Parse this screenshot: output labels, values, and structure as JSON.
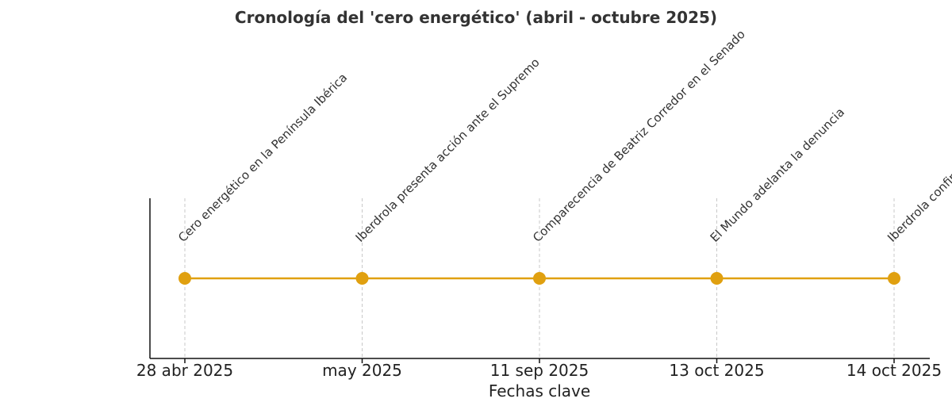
{
  "chart_data": {
    "type": "line",
    "title": "Cronología del 'cero energético' (abril - octubre 2025)",
    "xlabel": "Fechas clave",
    "ylabel": "",
    "categories": [
      "28 abr 2025",
      "may 2025",
      "11 sep 2025",
      "13 oct 2025",
      "14 oct 2025"
    ],
    "values": [
      1,
      1,
      1,
      1,
      1
    ],
    "events": [
      "Cero energético en la Península Ibérica",
      "Iberdrola presenta acción ante el Supremo",
      "Comparecencia de Beatriz Corredor en el Senado",
      "El Mundo adelanta la denuncia",
      "Iberdrola confirma inicio de acciones legales"
    ],
    "grid": "vertical dashed",
    "legend": "none",
    "color": "#E0A010"
  }
}
